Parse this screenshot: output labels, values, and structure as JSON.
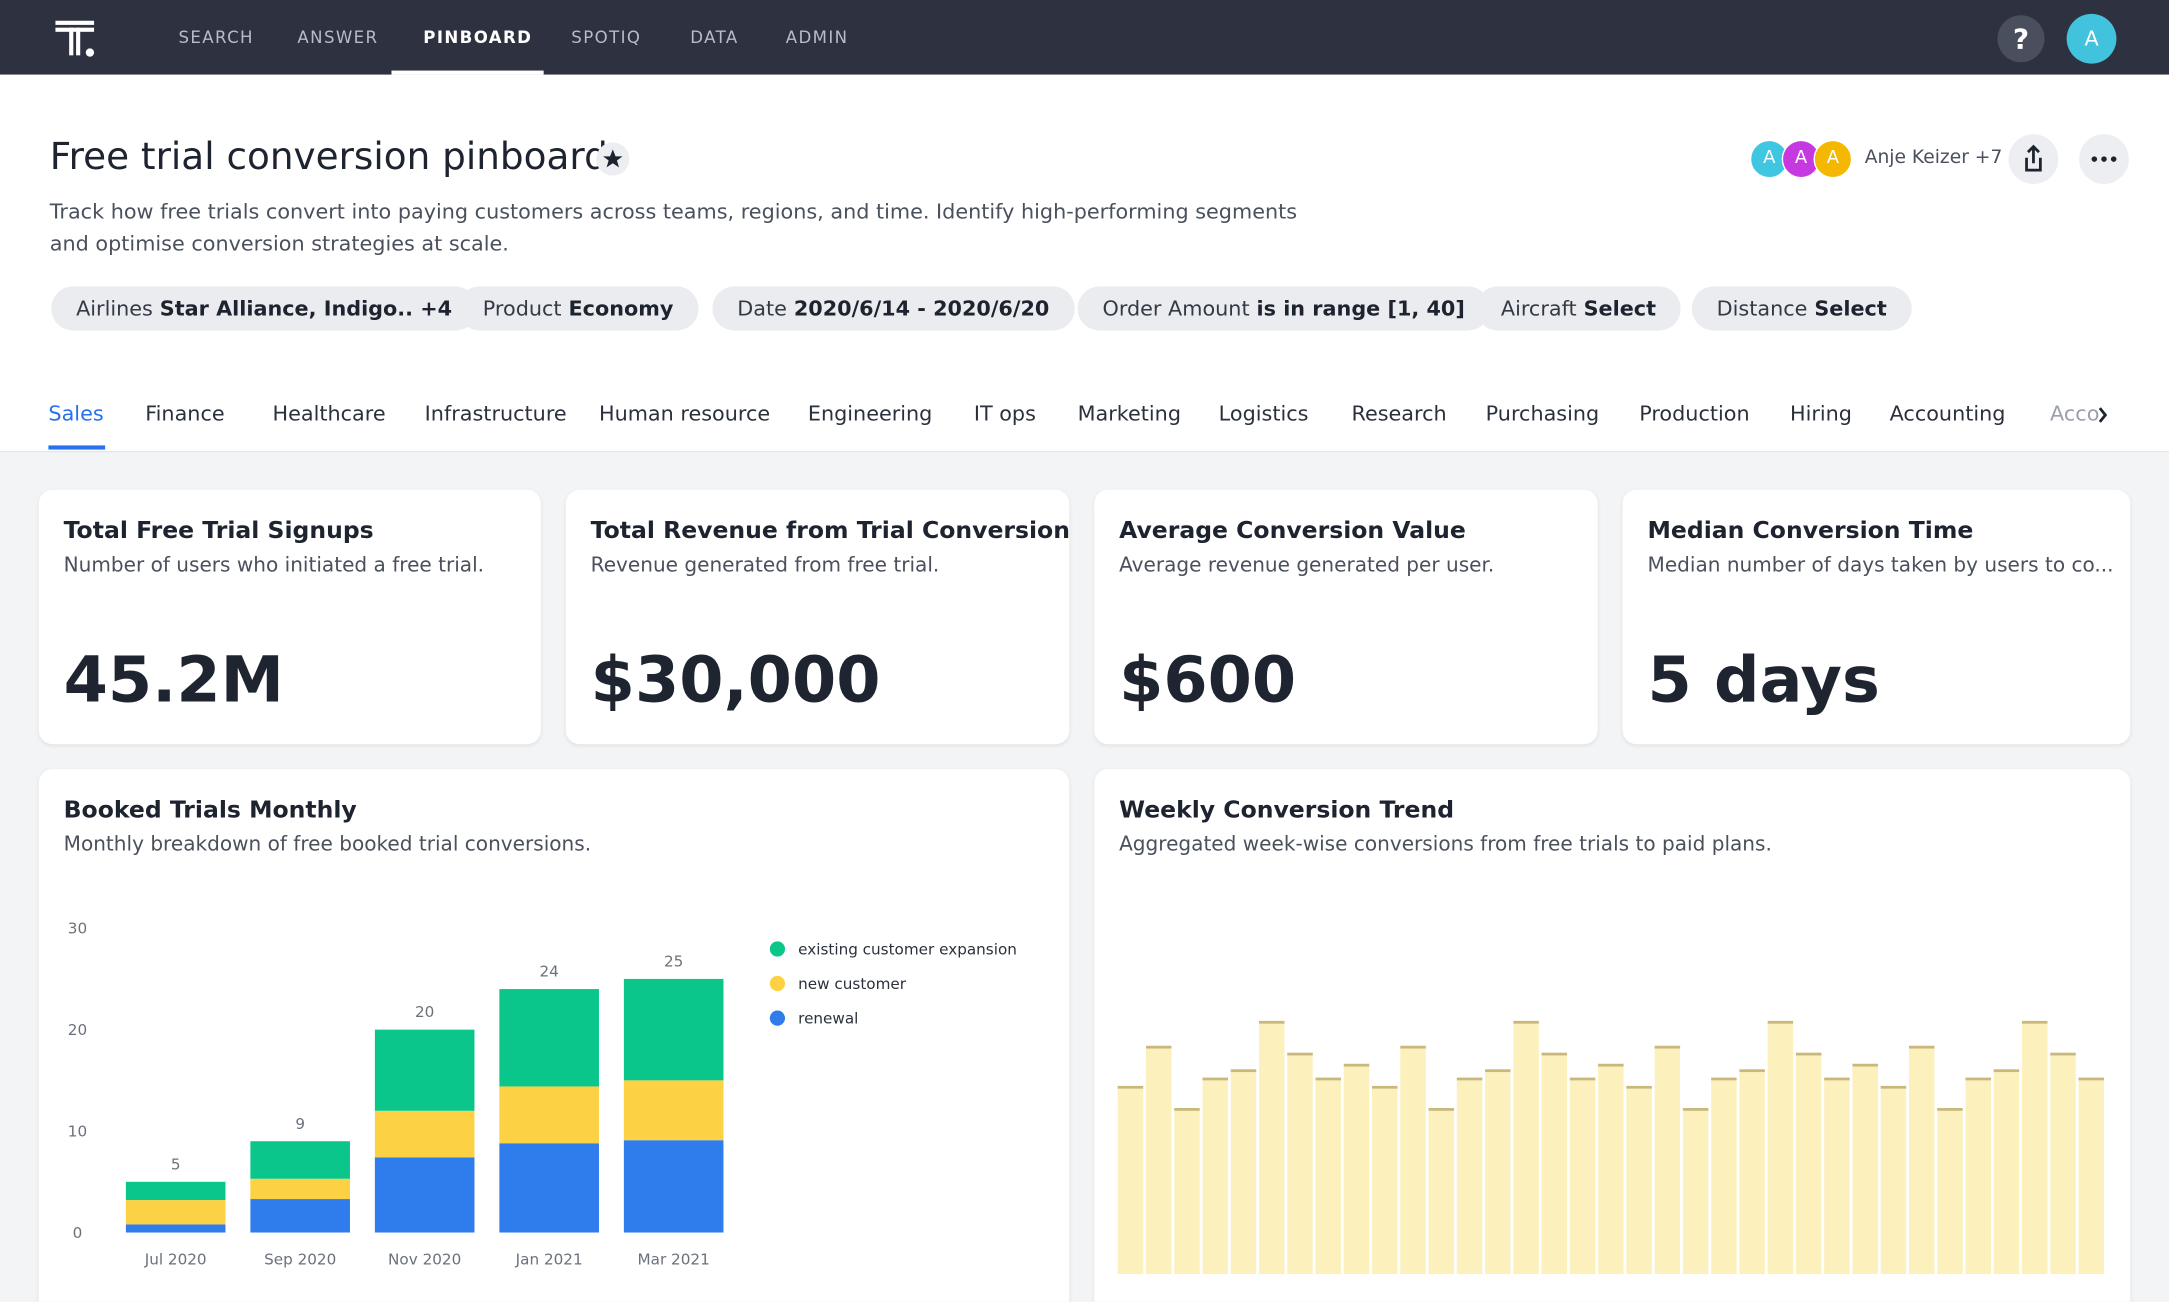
{
  "nav": {
    "items": [
      "SEARCH",
      "ANSWER",
      "PINBOARD",
      "SPOTIQ",
      "DATA",
      "ADMIN"
    ],
    "active": 2,
    "help": "?",
    "avatar": "A"
  },
  "header": {
    "title": "Free trial conversion pinboard",
    "description": "Track how free trials convert into paying customers across teams, regions, and time. Identify high-performing segments and optimise conversion strategies at scale.",
    "avatars": [
      {
        "label": "A",
        "color": "#3fc6e0"
      },
      {
        "label": "A",
        "color": "#c639e0"
      },
      {
        "label": "A",
        "color": "#f5b800"
      }
    ],
    "owner": "Anje Keizer +7"
  },
  "filters": [
    {
      "name": "Airlines",
      "value": "Star Alliance, Indigo.. +4"
    },
    {
      "name": "Product",
      "value": "Economy"
    },
    {
      "name": "Date",
      "value": "2020/6/14 - 2020/6/20"
    },
    {
      "name": "Order Amount",
      "value": "is in range [1, 40]"
    },
    {
      "name": "Aircraft",
      "value": "Select"
    },
    {
      "name": "Distance",
      "value": "Select"
    }
  ],
  "tabs": {
    "items": [
      "Sales",
      "Finance",
      "Healthcare",
      "Infrastructure",
      "Human resource",
      "Engineering",
      "IT ops",
      "Marketing",
      "Logistics",
      "Research",
      "Purchasing",
      "Production",
      "Hiring",
      "Accounting",
      "Acco"
    ],
    "active": 0
  },
  "kpis": [
    {
      "title": "Total Free Trial Signups",
      "subtitle": "Number of users who initiated a free trial.",
      "value": "45.2M"
    },
    {
      "title": "Total Revenue from Trial Conversions",
      "subtitle": "Revenue generated from free trial.",
      "value": "$30,000"
    },
    {
      "title": "Average Conversion Value",
      "subtitle": "Average revenue generated per user.",
      "value": "$600"
    },
    {
      "title": "Median Conversion Time",
      "subtitle": "Median number of days taken by users to co...",
      "value": "5 days"
    }
  ],
  "chart_data": [
    {
      "type": "stacked-bar",
      "title": "Booked Trials Monthly",
      "subtitle": "Monthly breakdown of free booked trial conversions.",
      "categories": [
        "Jul 2020",
        "Sep 2020",
        "Nov 2020",
        "Jan 2021",
        "Mar 2021"
      ],
      "series": [
        {
          "name": "renewal",
          "color": "#2f7ced",
          "values": [
            0.8,
            3.3,
            7.4,
            8.8,
            9.1
          ]
        },
        {
          "name": "new customer",
          "color": "#fcd144",
          "values": [
            2.4,
            2.0,
            4.6,
            5.6,
            5.9
          ]
        },
        {
          "name": "existing customer expansion",
          "color": "#0bc68a",
          "values": [
            1.8,
            3.7,
            8.0,
            9.6,
            10.0
          ]
        }
      ],
      "totals": [
        5,
        9,
        20,
        24,
        25
      ],
      "legend_order": [
        2,
        1,
        0
      ],
      "ylim": [
        0,
        30
      ],
      "yticks": [
        0,
        10,
        20,
        30
      ]
    },
    {
      "type": "bar",
      "title": "Weekly Conversion Trend",
      "subtitle": "Aggregated week-wise conversions from free trials to paid plans.",
      "color": "#fcf0bd",
      "edge_color": "#c8b87c",
      "values": [
        13.5,
        16.4,
        11.9,
        14.1,
        14.7,
        18.2,
        15.9,
        14.1,
        15.1,
        13.5,
        16.4,
        11.9,
        14.1,
        14.7,
        18.2,
        15.9,
        14.1,
        15.1,
        13.5,
        16.4,
        11.9,
        14.1,
        14.7,
        18.2,
        15.9,
        14.1,
        15.1,
        13.5,
        16.4,
        11.9,
        14.1,
        14.7,
        18.2,
        15.9,
        14.1
      ]
    }
  ]
}
